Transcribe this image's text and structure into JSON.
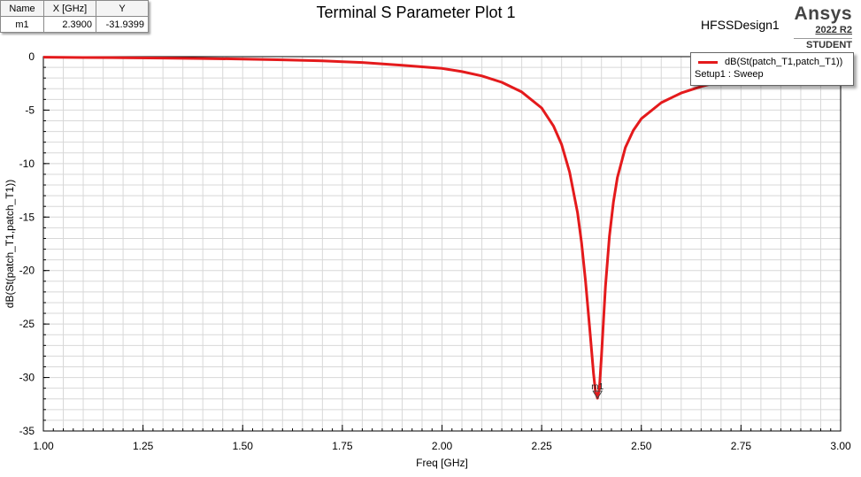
{
  "marker_table": {
    "headers": [
      "Name",
      "X [GHz]",
      "Y"
    ],
    "rows": [
      [
        "m1",
        "2.3900",
        "-31.9399"
      ]
    ]
  },
  "title": "Terminal S Parameter Plot 1",
  "design_name": "HFSSDesign1",
  "logo": {
    "brand": "Ansys",
    "version": "2022 R2",
    "edition": "STUDENT"
  },
  "legend": {
    "trace": "dB(St(patch_T1,patch_T1))",
    "setup": "Setup1 : Sweep"
  },
  "colors": {
    "trace": "#e41a1c",
    "grid": "#d8d8d8",
    "axis": "#000000"
  },
  "chart_data": {
    "type": "line",
    "title": "Terminal S Parameter Plot 1",
    "xlabel": "Freq [GHz]",
    "ylabel": "dB(St(patch_T1,patch_T1))",
    "xlim": [
      1.0,
      3.0
    ],
    "ylim": [
      -35,
      0
    ],
    "xticks": [
      1.0,
      1.25,
      1.5,
      1.75,
      2.0,
      2.25,
      2.5,
      2.75,
      3.0
    ],
    "xtick_labels": [
      "1.00",
      "1.25",
      "1.50",
      "1.75",
      "2.00",
      "2.25",
      "2.50",
      "2.75",
      "3.00"
    ],
    "yticks": [
      0,
      -5,
      -10,
      -15,
      -20,
      -25,
      -30,
      -35
    ],
    "ytick_labels": [
      "0",
      "-5",
      "-10",
      "-15",
      "-20",
      "-25",
      "-30",
      "-35"
    ],
    "grid": true,
    "legend_position": "top-right",
    "series": [
      {
        "name": "dB(St(patch_T1,patch_T1))",
        "x": [
          1.0,
          1.1,
          1.2,
          1.3,
          1.4,
          1.5,
          1.6,
          1.7,
          1.8,
          1.9,
          2.0,
          2.05,
          2.1,
          2.15,
          2.2,
          2.25,
          2.28,
          2.3,
          2.32,
          2.34,
          2.35,
          2.36,
          2.37,
          2.38,
          2.385,
          2.39,
          2.395,
          2.4,
          2.41,
          2.42,
          2.43,
          2.44,
          2.46,
          2.48,
          2.5,
          2.55,
          2.6,
          2.65,
          2.7,
          2.75
        ],
        "y": [
          -0.05,
          -0.08,
          -0.1,
          -0.13,
          -0.17,
          -0.22,
          -0.3,
          -0.4,
          -0.55,
          -0.8,
          -1.1,
          -1.4,
          -1.8,
          -2.4,
          -3.3,
          -4.8,
          -6.5,
          -8.2,
          -10.8,
          -14.6,
          -17.4,
          -21.0,
          -25.2,
          -29.6,
          -31.3,
          -31.94,
          -31.0,
          -28.0,
          -21.5,
          -16.8,
          -13.6,
          -11.3,
          -8.5,
          -6.9,
          -5.8,
          -4.3,
          -3.4,
          -2.8,
          -2.3,
          -1.9
        ]
      }
    ],
    "markers": [
      {
        "name": "m1",
        "x": 2.39,
        "y": -31.9399
      }
    ]
  }
}
